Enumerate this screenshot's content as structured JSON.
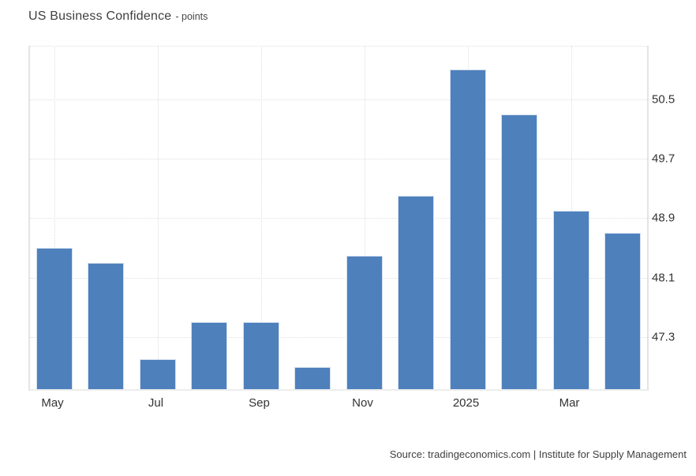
{
  "header": {
    "title": "US Business Confidence",
    "subtitle": "- points"
  },
  "footer": {
    "source": "Source: tradingeconomics.com | Institute for Supply Management"
  },
  "chart_data": {
    "type": "bar",
    "title": "US Business Confidence",
    "unit": "points",
    "x": [
      "May 2024",
      "Jun 2024",
      "Jul 2024",
      "Aug 2024",
      "Sep 2024",
      "Oct 2024",
      "Nov 2024",
      "Dec 2024",
      "Jan 2025",
      "Feb 2025",
      "Mar 2025",
      "Apr 2025"
    ],
    "values": [
      48.5,
      48.3,
      47.0,
      47.5,
      47.5,
      46.9,
      48.4,
      49.2,
      50.9,
      50.3,
      49.0,
      48.7
    ],
    "xtick_labels": [
      "May",
      "Jul",
      "Sep",
      "Nov",
      "2025",
      "Mar"
    ],
    "xtick_bar_indices": [
      0,
      2,
      4,
      6,
      8,
      10
    ],
    "ytick_labels": [
      "50.5",
      "49.7",
      "48.9",
      "48.1",
      "47.3"
    ],
    "ytick_values": [
      50.5,
      49.7,
      48.9,
      48.1,
      47.3
    ],
    "ylim": [
      46.6,
      51.22
    ],
    "grid": "dotted",
    "legend": "none",
    "yaxis_side": "right",
    "bar_color": "#4e80bc",
    "bar_border_color": "#d3e0ef",
    "grid_color": "#dfdfdf"
  }
}
